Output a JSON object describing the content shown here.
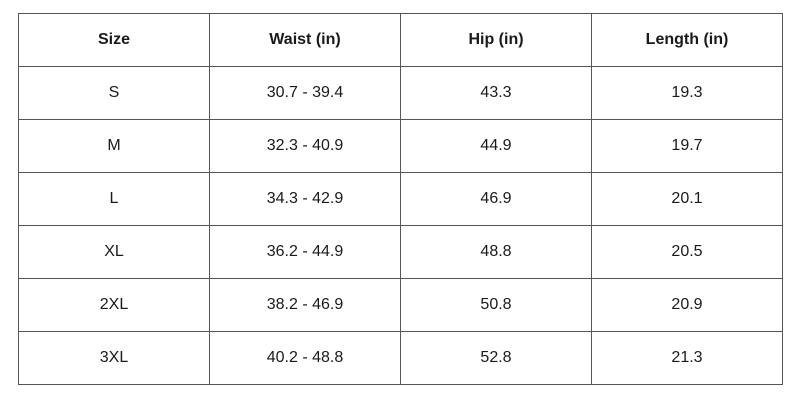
{
  "table": {
    "headers": [
      "Size",
      "Waist (in)",
      "Hip (in)",
      "Length (in)"
    ],
    "rows": [
      [
        "S",
        "30.7 - 39.4",
        "43.3",
        "19.3"
      ],
      [
        "M",
        "32.3 - 40.9",
        "44.9",
        "19.7"
      ],
      [
        "L",
        "34.3 - 42.9",
        "46.9",
        "20.1"
      ],
      [
        "XL",
        "36.2 - 44.9",
        "48.8",
        "20.5"
      ],
      [
        "2XL",
        "38.2 - 46.9",
        "50.8",
        "20.9"
      ],
      [
        "3XL",
        "40.2 - 48.8",
        "52.8",
        "21.3"
      ]
    ]
  },
  "colors": {
    "border": "#555555",
    "text": "#1a1a1a",
    "background": "#ffffff"
  }
}
